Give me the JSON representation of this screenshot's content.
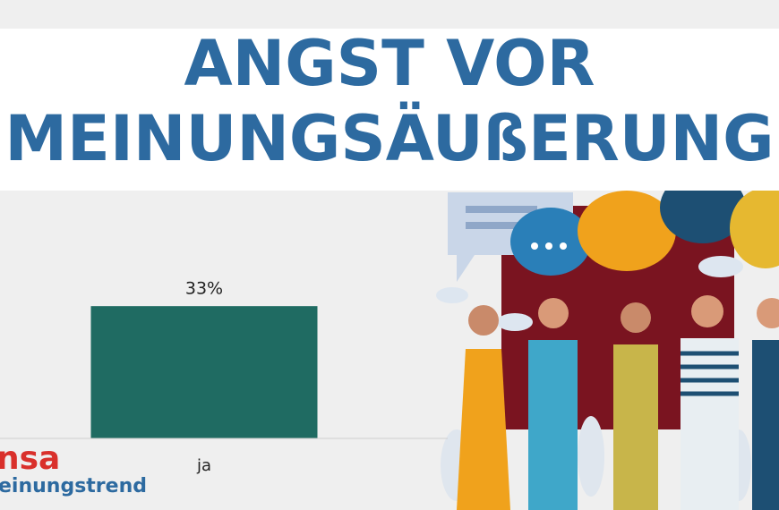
{
  "chart_data": {
    "type": "bar",
    "title": [
      "ANGST VOR",
      "MEINUNGSÄUßERUNG"
    ],
    "categories": [
      "ja"
    ],
    "values": [
      33
    ],
    "value_labels": [
      "33%"
    ],
    "color": "#1f6b62",
    "ylim": [
      0,
      100
    ],
    "logo": [
      "nsa",
      "einungstrend"
    ]
  }
}
